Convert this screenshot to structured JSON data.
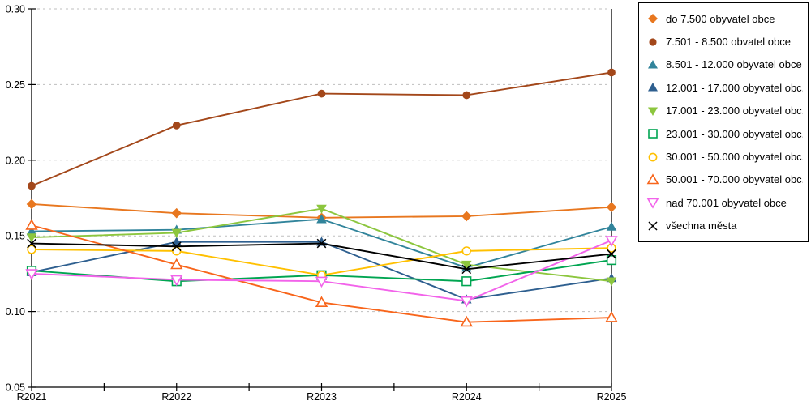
{
  "chart_data": {
    "type": "line",
    "title": "",
    "xlabel": "",
    "ylabel": "",
    "x_categories": [
      "R2021",
      "R2022",
      "R2023",
      "R2024",
      "R2025"
    ],
    "y_tick_labels": [
      "0.05",
      "0.10",
      "0.15",
      "0.20",
      "0.25",
      "0.30"
    ],
    "y_ticks": [
      0.05,
      0.1,
      0.15,
      0.2,
      0.25,
      0.3
    ],
    "ylim": [
      0.05,
      0.3
    ],
    "grid": "horizontal dashed lines at each 0.05 step",
    "legend_position": "outside top-right, boxed",
    "colors": {
      "axis": "#000000",
      "grid": "#BFBFBF",
      "background": "#FFFFFF"
    },
    "series": [
      {
        "name": "do 7.500 obyvatel obce",
        "color": "#E8771F",
        "marker": "diamond",
        "fill": "solid",
        "values": [
          0.171,
          0.165,
          0.162,
          0.163,
          0.169
        ]
      },
      {
        "name": "7.501 - 8.500 obvatel obce",
        "color": "#A3471A",
        "marker": "circle",
        "fill": "solid",
        "values": [
          0.183,
          0.223,
          0.244,
          0.243,
          0.258
        ]
      },
      {
        "name": "8.501 - 12.000 obyvatel obce",
        "color": "#31849B",
        "marker": "triangle-up",
        "fill": "solid",
        "values": [
          0.153,
          0.154,
          0.161,
          0.129,
          0.156
        ]
      },
      {
        "name": "12.001 - 17.000 obyvatel obc...",
        "color": "#2E5F8F",
        "marker": "triangle-up",
        "fill": "solid",
        "values": [
          0.126,
          0.146,
          0.146,
          0.108,
          0.122
        ]
      },
      {
        "name": "17.001 - 23.000 obyvatel obc...",
        "color": "#8CC63E",
        "marker": "triangle-down",
        "fill": "solid",
        "values": [
          0.149,
          0.152,
          0.168,
          0.131,
          0.12
        ]
      },
      {
        "name": "23.001 - 30.000 obyvatel obc...",
        "color": "#00A551",
        "marker": "square",
        "fill": "open",
        "values": [
          0.127,
          0.12,
          0.124,
          0.12,
          0.134
        ]
      },
      {
        "name": "30.001 - 50.000 obyvatel obc...",
        "color": "#FFC000",
        "marker": "circle",
        "fill": "open",
        "values": [
          0.141,
          0.14,
          0.124,
          0.14,
          0.142
        ]
      },
      {
        "name": "50.001 - 70.000 obyvatel obc...",
        "color": "#F8651B",
        "marker": "triangle-up",
        "fill": "open",
        "values": [
          0.157,
          0.131,
          0.106,
          0.093,
          0.096
        ]
      },
      {
        "name": "nad 70.001 obyvatel obce",
        "color": "#F263EA",
        "marker": "triangle-down",
        "fill": "open",
        "values": [
          0.125,
          0.121,
          0.12,
          0.107,
          0.147
        ]
      },
      {
        "name": "všechna města",
        "color": "#000000",
        "marker": "x",
        "fill": "line",
        "values": [
          0.145,
          0.143,
          0.145,
          0.128,
          0.138
        ]
      }
    ]
  }
}
